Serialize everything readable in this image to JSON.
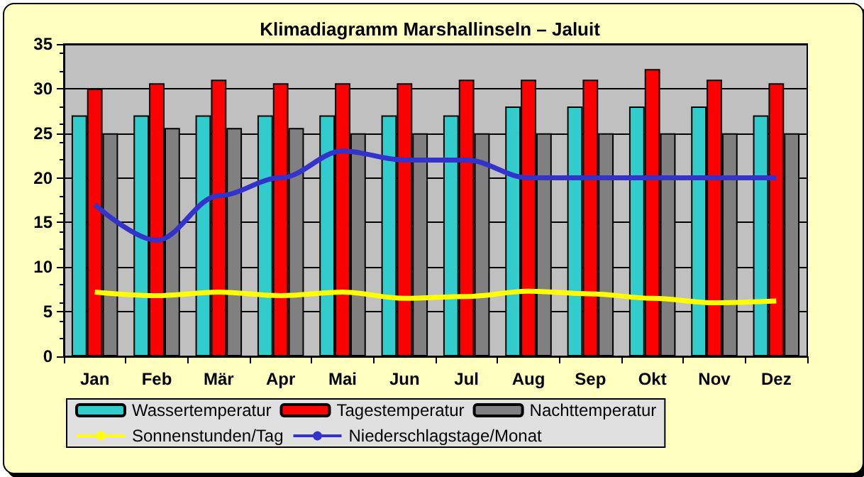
{
  "chart_data": {
    "type": "bar",
    "title": "Klimadiagramm Marshallinseln – Jaluit",
    "categories": [
      "Jan",
      "Feb",
      "Mär",
      "Apr",
      "Mai",
      "Jun",
      "Jul",
      "Aug",
      "Sep",
      "Okt",
      "Nov",
      "Dez"
    ],
    "series": [
      {
        "name": "Wassertemperatur",
        "color": "#33cccc",
        "values": [
          27,
          27,
          27,
          27,
          27,
          27,
          27,
          28,
          28,
          28,
          28,
          27
        ]
      },
      {
        "name": "Tagestemperatur",
        "color": "#ff0000",
        "values": [
          30,
          30.6,
          31,
          30.6,
          30.6,
          30.6,
          31,
          31,
          31,
          32.2,
          31,
          30.6
        ]
      },
      {
        "name": "Nachttemperatur",
        "color": "#808080",
        "values": [
          25,
          25.6,
          25.6,
          25.6,
          25,
          25,
          25,
          25,
          25,
          25,
          25,
          25
        ]
      },
      {
        "name": "Sonnenstunden/Tag",
        "type": "line",
        "color": "#ffff00",
        "values": [
          7.2,
          6.8,
          7.2,
          6.8,
          7.2,
          6.5,
          6.7,
          7.3,
          7,
          6.5,
          6,
          6.2
        ]
      },
      {
        "name": "Niederschlagstage/Monat",
        "type": "line",
        "color": "#3333cc",
        "values": [
          17,
          13,
          18,
          20,
          23,
          22,
          22,
          20,
          20,
          20,
          20,
          20
        ]
      }
    ],
    "ylim": [
      0,
      35
    ],
    "yticks": [
      0,
      5,
      10,
      15,
      20,
      25,
      30,
      35
    ],
    "grid": "y",
    "legend": "bottom",
    "marker": "none"
  }
}
